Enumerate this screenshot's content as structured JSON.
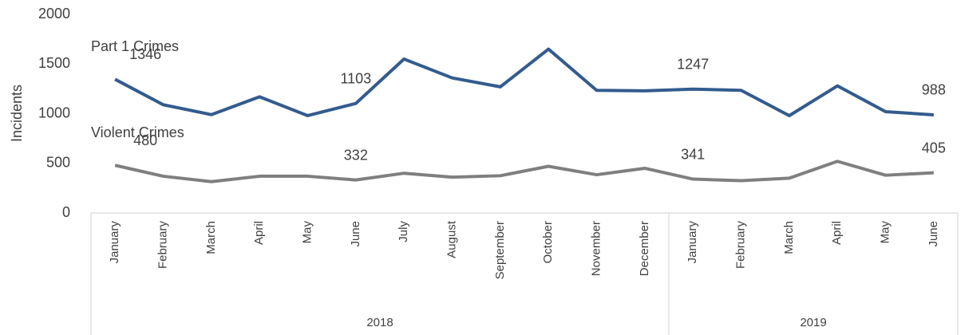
{
  "chart_data": {
    "type": "line",
    "y_label": "Incidents",
    "category_groups": [
      {
        "label": "2018",
        "categories": [
          "January",
          "February",
          "March",
          "April",
          "May",
          "June",
          "July",
          "August",
          "September",
          "October",
          "November",
          "December"
        ]
      },
      {
        "label": "2019",
        "categories": [
          "January",
          "February",
          "March",
          "April",
          "May",
          "June"
        ]
      }
    ],
    "series": [
      {
        "name": "Part 1 Crimes",
        "color": "#335b8e",
        "values": [
          1346,
          1090,
          990,
          1170,
          980,
          1103,
          1550,
          1360,
          1270,
          1650,
          1235,
          1230,
          1247,
          1235,
          980,
          1280,
          1020,
          988
        ]
      },
      {
        "name": "Violent Crimes",
        "color": "#7f7f7f",
        "values": [
          480,
          370,
          315,
          370,
          370,
          332,
          400,
          360,
          375,
          470,
          385,
          450,
          341,
          325,
          350,
          520,
          380,
          405
        ]
      }
    ],
    "labeled_indices": [
      0,
      5,
      12,
      17
    ],
    "ylim": [
      0,
      2000
    ],
    "yticks": [
      0,
      500,
      1000,
      1500,
      2000
    ]
  }
}
